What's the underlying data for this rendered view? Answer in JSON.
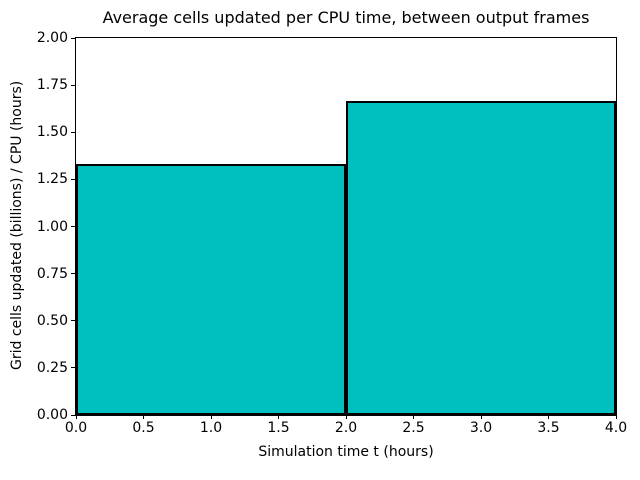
{
  "chart_data": {
    "type": "bar",
    "title": "Average cells updated per CPU time, between output frames",
    "xlabel": "Simulation time t (hours)",
    "ylabel": "Grid cells updated (billions) / CPU (hours)",
    "xlim": [
      0,
      4
    ],
    "ylim": [
      0,
      2
    ],
    "xticks": [
      "0.0",
      "0.5",
      "1.0",
      "1.5",
      "2.0",
      "2.5",
      "3.0",
      "3.5",
      "4.0"
    ],
    "yticks": [
      "0.00",
      "0.25",
      "0.50",
      "0.75",
      "1.00",
      "1.25",
      "1.50",
      "1.75",
      "2.00"
    ],
    "bars": [
      {
        "x_start": 0,
        "x_end": 2,
        "value": 1.333
      },
      {
        "x_start": 2,
        "x_end": 4,
        "value": 1.667
      }
    ],
    "bar_color": "#00bfbf",
    "edge_color": "#000000",
    "background_color": "#ffffff",
    "grid": false,
    "legend": "none"
  }
}
